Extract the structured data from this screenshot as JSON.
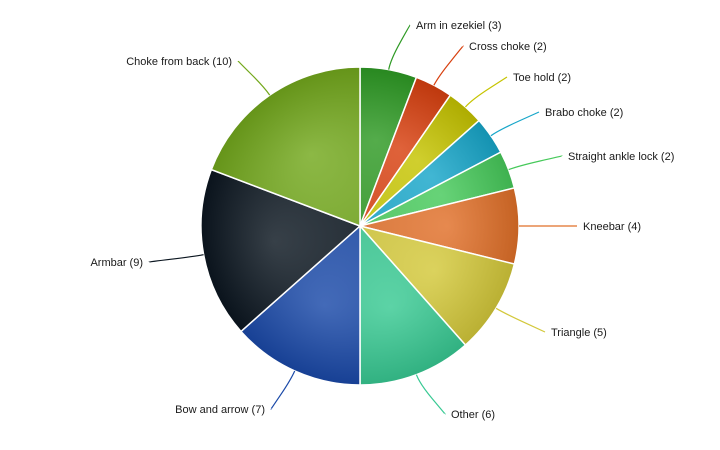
{
  "chart_data": {
    "type": "pie",
    "title": "",
    "slices": [
      {
        "name": "Arm in ezekiel",
        "value": 3,
        "label": "Arm in ezekiel (3)",
        "color": "#2e9a24",
        "side": "right"
      },
      {
        "name": "Cross choke",
        "value": 2,
        "label": "Cross choke (2)",
        "color": "#d8400f",
        "side": "right"
      },
      {
        "name": "Toe hold",
        "value": 2,
        "label": "Toe hold (2)",
        "color": "#c6c400",
        "side": "right"
      },
      {
        "name": "Brabo choke",
        "value": 2,
        "label": "Brabo choke (2)",
        "color": "#17a6c9",
        "side": "right"
      },
      {
        "name": "Straight ankle lock",
        "value": 2,
        "label": "Straight ankle lock (2)",
        "color": "#46c95a",
        "side": "right"
      },
      {
        "name": "Kneebar",
        "value": 4,
        "label": "Kneebar (4)",
        "color": "#e06f28",
        "side": "right"
      },
      {
        "name": "Triangle",
        "value": 5,
        "label": "Triangle (5)",
        "color": "#d3c83a",
        "side": "right"
      },
      {
        "name": "Other",
        "value": 6,
        "label": "Other (6)",
        "color": "#38c993",
        "side": "right"
      },
      {
        "name": "Bow and arrow",
        "value": 7,
        "label": "Bow and arrow (7)",
        "color": "#1a49a8",
        "side": "left"
      },
      {
        "name": "Armbar",
        "value": 9,
        "label": "Armbar (9)",
        "color": "#0b1620",
        "side": "left"
      },
      {
        "name": "Choke from back",
        "value": 10,
        "label": "Choke from back (10)",
        "color": "#73a81c",
        "side": "left"
      }
    ]
  }
}
